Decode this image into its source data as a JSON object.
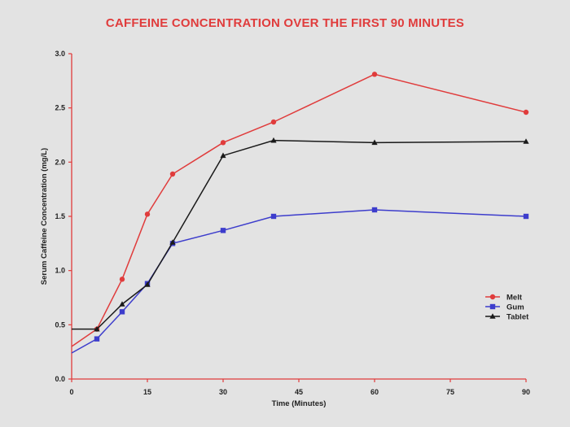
{
  "chart_data": {
    "type": "line",
    "title": "CAFFEINE CONCENTRATION OVER THE FIRST 90 MINUTES",
    "xlabel": "Time (Minutes)",
    "ylabel": "Serum Caffeine Concentration (mg/L)",
    "xlim": [
      0,
      90
    ],
    "ylim": [
      0,
      3.0
    ],
    "xticks": [
      0,
      15,
      30,
      45,
      60,
      75,
      90
    ],
    "xtick_labels": [
      "0",
      "15",
      "30",
      "45",
      "60",
      "75",
      "90"
    ],
    "yticks": [
      0,
      0.5,
      1.0,
      1.5,
      2.0,
      2.5,
      3.0
    ],
    "ytick_labels": [
      "0.0",
      "0.5",
      "1.0",
      "1.5",
      "2.0",
      "2.5",
      "3.0"
    ],
    "grid": false,
    "legend_position": "right",
    "series": [
      {
        "name": "Melt",
        "color": "#e03c3c",
        "marker": "circle",
        "x": [
          0,
          5,
          10,
          15,
          20,
          30,
          40,
          60,
          90
        ],
        "y": [
          0.3,
          0.46,
          0.92,
          1.52,
          1.89,
          2.18,
          2.37,
          2.81,
          2.46
        ]
      },
      {
        "name": "Gum",
        "color": "#3d3dcc",
        "marker": "square",
        "x": [
          0,
          5,
          10,
          15,
          20,
          30,
          40,
          60,
          90
        ],
        "y": [
          0.24,
          0.37,
          0.62,
          0.88,
          1.25,
          1.37,
          1.5,
          1.56,
          1.5
        ]
      },
      {
        "name": "Tablet",
        "color": "#1a1a1a",
        "marker": "triangle",
        "x": [
          0,
          5,
          10,
          15,
          20,
          30,
          40,
          60,
          90
        ],
        "y": [
          0.46,
          0.46,
          0.69,
          0.87,
          1.26,
          2.06,
          2.2,
          2.18,
          2.19
        ]
      }
    ]
  }
}
